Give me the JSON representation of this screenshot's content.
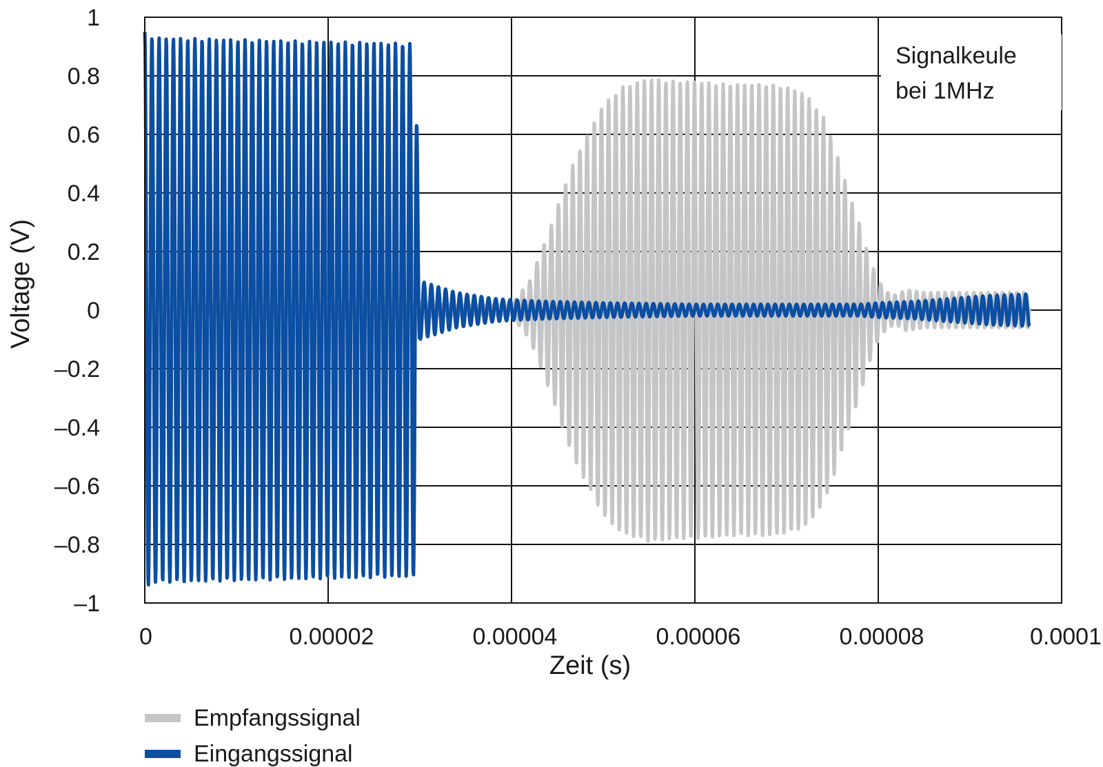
{
  "chart_data": {
    "type": "line",
    "title": "",
    "xlabel": "Zeit (s)",
    "ylabel": "Voltage (V)",
    "xlim": [
      0,
      0.0001
    ],
    "ylim": [
      -1,
      1
    ],
    "grid": true,
    "x_ticks": [
      0,
      2e-05,
      4e-05,
      6e-05,
      8e-05,
      0.0001
    ],
    "x_tick_labels": [
      "0",
      "0.00002",
      "0.00004",
      "0.00006",
      "0.00008",
      "0.0001"
    ],
    "y_ticks": [
      1,
      0.8,
      0.6,
      0.4,
      0.2,
      0,
      -0.2,
      -0.4,
      -0.6,
      -0.8,
      -1
    ],
    "y_tick_labels": [
      "1",
      "0.8",
      "0.6",
      "0.4",
      "0.2",
      "0",
      "–0.2",
      "–0.4",
      "–0.6",
      "–0.8",
      "–1"
    ],
    "annotation": [
      "Signalkeule",
      "bei 1MHz"
    ],
    "annotation_position": "top-right",
    "legend_position": "bottom-left",
    "signal_frequency_hz": 1000000,
    "series": [
      {
        "name": "Empfangssignal",
        "color": "#c4c5c7",
        "x_range": [
          0,
          9.65e-05
        ],
        "envelope": {
          "x": [
            0,
            4e-06,
            8e-06,
            1e-05,
            1.6e-05,
            2.2e-05,
            2.8e-05,
            3e-05,
            3.4e-05,
            4e-05,
            4.1e-05,
            4.2e-05,
            4.3e-05,
            4.4e-05,
            4.5e-05,
            4.6e-05,
            4.7e-05,
            4.8e-05,
            5e-05,
            5.2e-05,
            5.4e-05,
            5.5e-05,
            5.8e-05,
            6e-05,
            6.4e-05,
            6.8e-05,
            7e-05,
            7.2e-05,
            7.4e-05,
            7.5e-05,
            7.6e-05,
            7.7e-05,
            7.8e-05,
            7.9e-05,
            8e-05,
            8.1e-05,
            8.2e-05,
            8.3e-05,
            8.5e-05,
            9e-05,
            9.65e-05
          ],
          "y": [
            0.0,
            0.0,
            0.02,
            0.03,
            0.02,
            0.03,
            0.02,
            0.03,
            0.02,
            0.02,
            0.06,
            0.1,
            0.18,
            0.26,
            0.35,
            0.44,
            0.52,
            0.58,
            0.7,
            0.76,
            0.78,
            0.79,
            0.78,
            0.78,
            0.77,
            0.77,
            0.76,
            0.74,
            0.66,
            0.58,
            0.48,
            0.38,
            0.29,
            0.18,
            0.1,
            0.06,
            0.05,
            0.07,
            0.06,
            0.06,
            0.06
          ]
        }
      },
      {
        "name": "Eingangssignal",
        "color": "#0b4ea2",
        "x_range": [
          0,
          9.65e-05
        ],
        "envelope": {
          "x": [
            0,
            1e-06,
            2.9e-05,
            2.95e-05,
            3e-05,
            3.2e-05,
            3.4e-05,
            3.6e-05,
            3.8e-05,
            4e-05,
            4.4e-05,
            5e-05,
            6e-05,
            7e-05,
            7.4e-05,
            7.8e-05,
            8e-05,
            8.4e-05,
            8.8e-05,
            9.2e-05,
            9.65e-05
          ],
          "y": [
            0.95,
            0.93,
            0.91,
            0.91,
            0.1,
            0.08,
            0.06,
            0.05,
            0.04,
            0.035,
            0.03,
            0.025,
            0.02,
            0.02,
            0.02,
            0.02,
            0.025,
            0.03,
            0.04,
            0.05,
            0.055
          ]
        }
      }
    ]
  }
}
